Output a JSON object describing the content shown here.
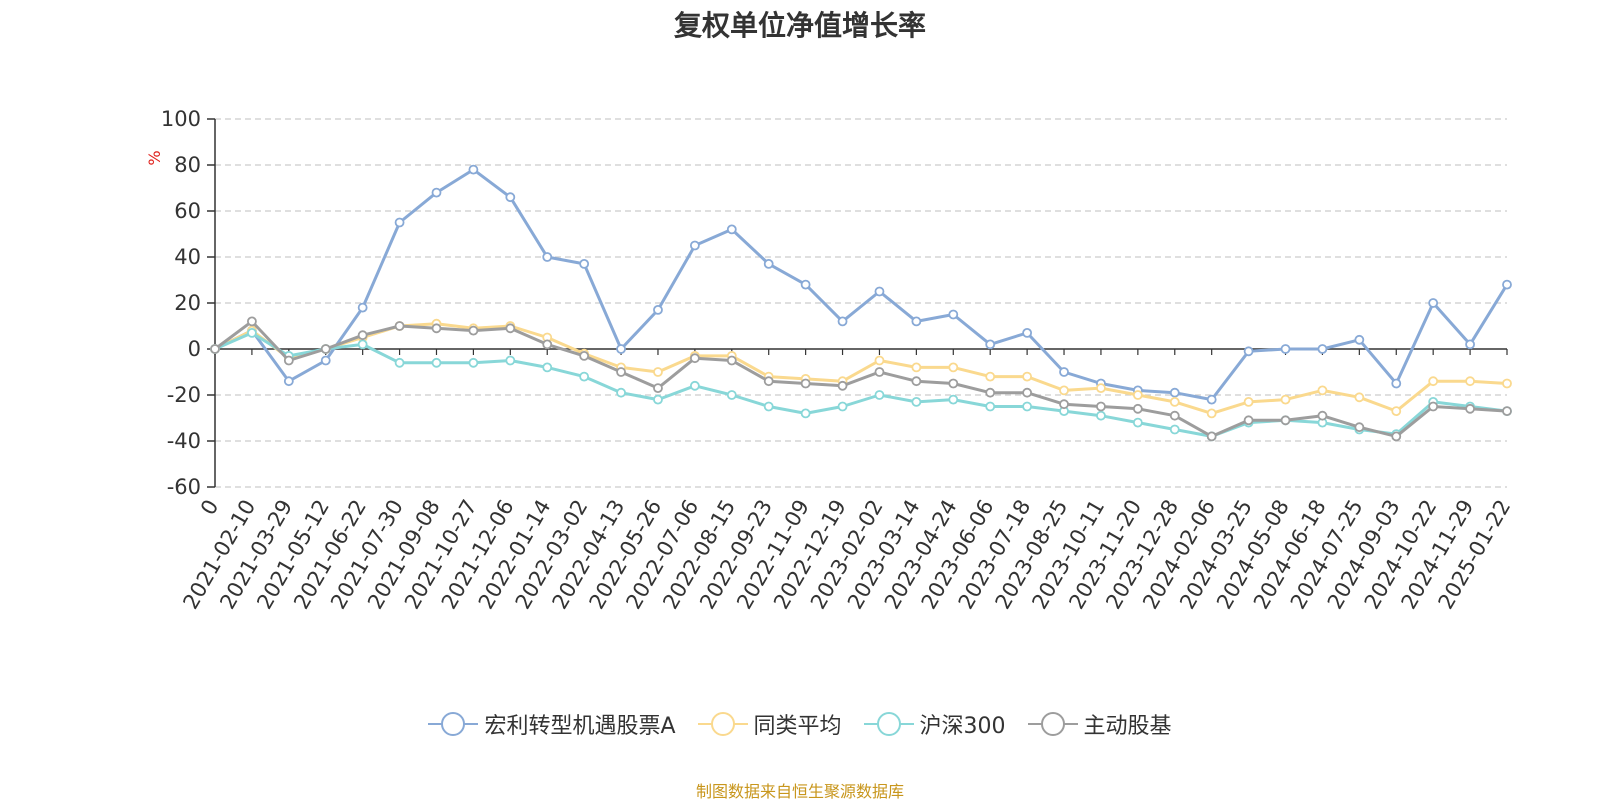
{
  "title": "复权单位净值增长率",
  "source": "制图数据来自恒生聚源数据库",
  "chart_data": {
    "type": "line",
    "title": "复权单位净值增长率",
    "ylabel": "%",
    "ylim": [
      -60,
      100
    ],
    "yticks": [
      -60,
      -40,
      -20,
      0,
      20,
      40,
      60,
      80,
      100
    ],
    "grid": true,
    "legend_position": "bottom",
    "x": [
      "0",
      "2021-02-10",
      "2021-03-29",
      "2021-05-12",
      "2021-06-22",
      "2021-07-30",
      "2021-09-08",
      "2021-10-27",
      "2021-12-06",
      "2022-01-14",
      "2022-03-02",
      "2022-04-13",
      "2022-05-26",
      "2022-07-06",
      "2022-08-15",
      "2022-09-23",
      "2022-11-09",
      "2022-12-19",
      "2023-02-02",
      "2023-03-14",
      "2023-04-24",
      "2023-06-06",
      "2023-07-18",
      "2023-08-25",
      "2023-10-11",
      "2023-11-20",
      "2023-12-28",
      "2024-02-06",
      "2024-03-25",
      "2024-05-08",
      "2024-06-18",
      "2024-07-25",
      "2024-09-03",
      "2024-10-22",
      "2024-11-29",
      "2025-01-22"
    ],
    "series": [
      {
        "name": "宏利转型机遇股票A",
        "color": "#88a9d6",
        "values": [
          0,
          8,
          -14,
          -5,
          18,
          55,
          68,
          78,
          66,
          40,
          37,
          0,
          17,
          45,
          52,
          37,
          28,
          12,
          25,
          12,
          15,
          2,
          7,
          -10,
          -15,
          -18,
          -19,
          -22,
          -1,
          0,
          0,
          4,
          -15,
          20,
          2,
          28
        ]
      },
      {
        "name": "同类平均",
        "color": "#fad98e",
        "values": [
          0,
          8,
          -4,
          0,
          5,
          10,
          11,
          9,
          10,
          5,
          -2,
          -8,
          -10,
          -3,
          -3,
          -12,
          -13,
          -14,
          -5,
          -8,
          -8,
          -12,
          -12,
          -18,
          -17,
          -20,
          -23,
          -28,
          -23,
          -22,
          -18,
          -21,
          -27,
          -14,
          -14,
          -15
        ]
      },
      {
        "name": "沪深300",
        "color": "#88d7d8",
        "values": [
          0,
          7,
          -3,
          0,
          2,
          -6,
          -6,
          -6,
          -5,
          -8,
          -12,
          -19,
          -22,
          -16,
          -20,
          -25,
          -28,
          -25,
          -20,
          -23,
          -22,
          -25,
          -25,
          -27,
          -29,
          -32,
          -35,
          -38,
          -32,
          -31,
          -32,
          -35,
          -37,
          -23,
          -25,
          -27
        ]
      },
      {
        "name": "主动股基",
        "color": "#9d9d9d",
        "values": [
          0,
          12,
          -5,
          0,
          6,
          10,
          9,
          8,
          9,
          2,
          -3,
          -10,
          -17,
          -4,
          -5,
          -14,
          -15,
          -16,
          -10,
          -14,
          -15,
          -19,
          -19,
          -24,
          -25,
          -26,
          -29,
          -38,
          -31,
          -31,
          -29,
          -34,
          -38,
          -25,
          -26,
          -27
        ]
      }
    ]
  }
}
